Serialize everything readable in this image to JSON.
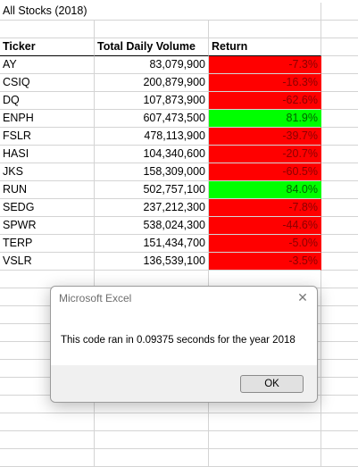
{
  "sheet": {
    "title": "All Stocks (2018)",
    "headers": {
      "ticker": "Ticker",
      "volume": "Total Daily Volume",
      "return": "Return"
    },
    "rows": [
      {
        "ticker": "AY",
        "volume": "83,079,900",
        "return": "-7.3%",
        "status": "negative"
      },
      {
        "ticker": "CSIQ",
        "volume": "200,879,900",
        "return": "-16.3%",
        "status": "negative"
      },
      {
        "ticker": "DQ",
        "volume": "107,873,900",
        "return": "-62.6%",
        "status": "negative"
      },
      {
        "ticker": "ENPH",
        "volume": "607,473,500",
        "return": "81.9%",
        "status": "positive"
      },
      {
        "ticker": "FSLR",
        "volume": "478,113,900",
        "return": "-39.7%",
        "status": "negative"
      },
      {
        "ticker": "HASI",
        "volume": "104,340,600",
        "return": "-20.7%",
        "status": "negative"
      },
      {
        "ticker": "JKS",
        "volume": "158,309,000",
        "return": "-60.5%",
        "status": "negative"
      },
      {
        "ticker": "RUN",
        "volume": "502,757,100",
        "return": "84.0%",
        "status": "positive"
      },
      {
        "ticker": "SEDG",
        "volume": "237,212,300",
        "return": "-7.8%",
        "status": "negative"
      },
      {
        "ticker": "SPWR",
        "volume": "538,024,300",
        "return": "-44.6%",
        "status": "negative"
      },
      {
        "ticker": "TERP",
        "volume": "151,434,700",
        "return": "-5.0%",
        "status": "negative"
      },
      {
        "ticker": "VSLR",
        "volume": "136,539,100",
        "return": "-3.5%",
        "status": "negative"
      }
    ],
    "colors": {
      "negative": "#ff0000",
      "positive": "#00ff00"
    }
  },
  "dialog": {
    "title": "Microsoft Excel",
    "close_icon": "close-icon",
    "message": "This code ran in 0.09375 seconds for the year 2018",
    "ok_label": "OK"
  }
}
